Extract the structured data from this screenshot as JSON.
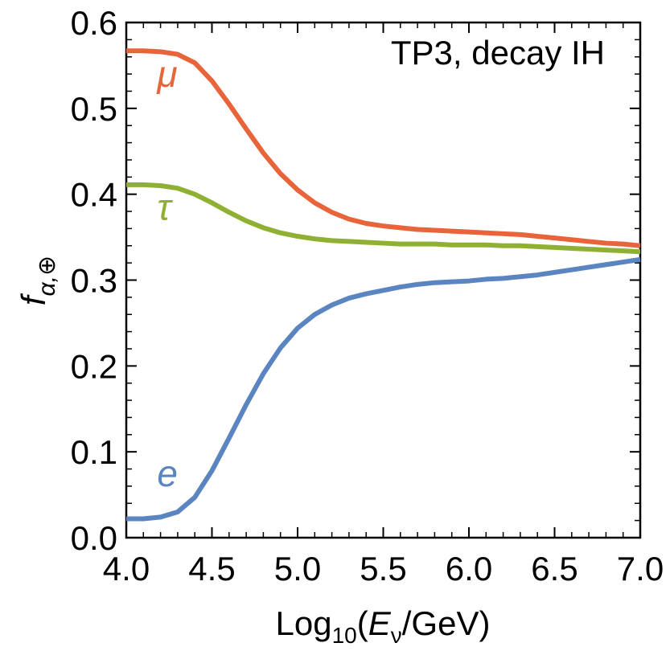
{
  "chart_data": {
    "type": "line",
    "title": "",
    "annotation": "TP3, decay IH",
    "xlabel_parts": {
      "base": "Log",
      "sub": "10",
      "open": "(",
      "var": "E",
      "var_sub": "ν",
      "rest": "/GeV)"
    },
    "ylabel_parts": {
      "var": "f",
      "sub": "α,⊕"
    },
    "xlim": [
      4.0,
      7.0
    ],
    "ylim": [
      0.0,
      0.6
    ],
    "x_ticks": [
      4.0,
      4.5,
      5.0,
      5.5,
      6.0,
      6.5,
      7.0
    ],
    "x_tick_labels": [
      "4.0",
      "4.5",
      "5.0",
      "5.5",
      "6.0",
      "6.5",
      "7.0"
    ],
    "y_ticks": [
      0.0,
      0.1,
      0.2,
      0.3,
      0.4,
      0.5,
      0.6
    ],
    "y_tick_labels": [
      "0.0",
      "0.1",
      "0.2",
      "0.3",
      "0.4",
      "0.5",
      "0.6"
    ],
    "x": [
      4.0,
      4.1,
      4.2,
      4.3,
      4.4,
      4.5,
      4.6,
      4.7,
      4.8,
      4.9,
      5.0,
      5.1,
      5.2,
      5.3,
      5.4,
      5.5,
      5.6,
      5.7,
      5.8,
      5.9,
      6.0,
      6.1,
      6.2,
      6.3,
      6.4,
      6.5,
      6.6,
      6.7,
      6.8,
      6.9,
      7.0
    ],
    "series": [
      {
        "name": "μ",
        "color": "#e8643a",
        "values": [
          0.567,
          0.567,
          0.566,
          0.563,
          0.553,
          0.532,
          0.505,
          0.476,
          0.448,
          0.424,
          0.405,
          0.39,
          0.379,
          0.371,
          0.366,
          0.363,
          0.361,
          0.359,
          0.358,
          0.357,
          0.356,
          0.355,
          0.354,
          0.353,
          0.351,
          0.349,
          0.347,
          0.345,
          0.343,
          0.342,
          0.34
        ]
      },
      {
        "name": "τ",
        "color": "#8fb032",
        "values": [
          0.411,
          0.411,
          0.41,
          0.407,
          0.4,
          0.39,
          0.379,
          0.369,
          0.361,
          0.355,
          0.351,
          0.348,
          0.346,
          0.345,
          0.344,
          0.343,
          0.342,
          0.342,
          0.342,
          0.341,
          0.341,
          0.341,
          0.34,
          0.34,
          0.339,
          0.338,
          0.337,
          0.336,
          0.335,
          0.334,
          0.333
        ]
      },
      {
        "name": "e",
        "color": "#5b85c0",
        "values": [
          0.022,
          0.022,
          0.024,
          0.03,
          0.047,
          0.078,
          0.116,
          0.155,
          0.191,
          0.221,
          0.244,
          0.26,
          0.271,
          0.279,
          0.284,
          0.288,
          0.292,
          0.295,
          0.297,
          0.298,
          0.299,
          0.301,
          0.302,
          0.304,
          0.306,
          0.309,
          0.312,
          0.315,
          0.318,
          0.321,
          0.324
        ]
      }
    ],
    "series_label_anchor": {
      "μ": [
        4.18,
        0.525
      ],
      "τ": [
        4.18,
        0.37
      ],
      "e": [
        4.18,
        0.06
      ]
    }
  }
}
